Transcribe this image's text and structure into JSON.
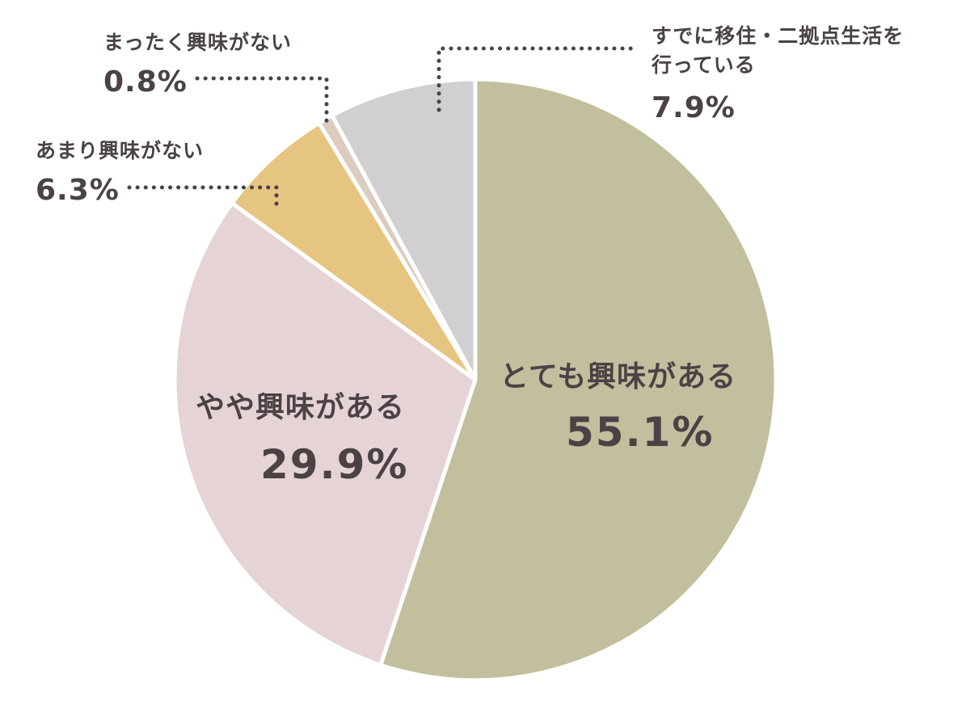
{
  "chart_data": {
    "type": "pie",
    "title": "",
    "start_angle_deg": 0,
    "direction": "clockwise",
    "slices": [
      {
        "label": "とても興味がある",
        "value": 55.1,
        "value_label": "55.1%",
        "color": "#c2bf9e"
      },
      {
        "label": "やや興味がある",
        "value": 29.9,
        "value_label": "29.9%",
        "color": "#e6d3d6"
      },
      {
        "label": "あまり興味がない",
        "value": 6.3,
        "value_label": "6.3%",
        "color": "#e6c581"
      },
      {
        "label": "まったく興味がない",
        "value": 0.8,
        "value_label": "0.8%",
        "color": "#dccbc0"
      },
      {
        "label_lines": [
          "すでに移住・二拠点生活を",
          "行っている"
        ],
        "value": 7.9,
        "value_label": "7.9%",
        "color": "#d1cfd2"
      }
    ]
  }
}
